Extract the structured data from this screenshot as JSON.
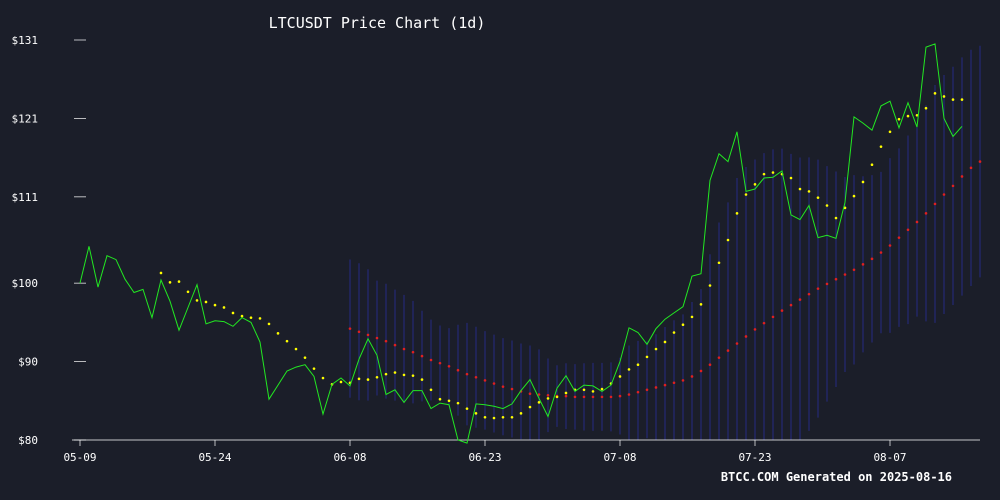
{
  "chart_data": {
    "type": "line",
    "title": "LTCUSDT Price Chart (1d)",
    "footer": "BTCC.COM Generated on 2025-08-16",
    "x_start": "2025-05-09",
    "x_tick_labels": [
      "05-09",
      "05-24",
      "06-08",
      "06-23",
      "07-08",
      "07-23",
      "08-07"
    ],
    "y_tick_labels": [
      "$131",
      "$121",
      "$111",
      "$100",
      "$90",
      "$80"
    ],
    "ylim": [
      80,
      131
    ],
    "colors": {
      "background": "#1b1e29",
      "price": "#22e822",
      "sma_short": "#ffff00",
      "sma_long": "#e02020",
      "band": "#2a2fa0",
      "axis": "#ffffff"
    },
    "series": [
      {
        "key": "price",
        "values": [
          100.0,
          104.7,
          99.5,
          103.5,
          103.0,
          100.5,
          98.8,
          99.2,
          95.6,
          100.4,
          97.7,
          94.0,
          96.9,
          99.8,
          94.8,
          95.2,
          95.1,
          94.5,
          95.6,
          95.0,
          92.5,
          85.2,
          87.0,
          88.8,
          89.3,
          89.6,
          88.1,
          83.3,
          87.1,
          87.9,
          86.9,
          90.3,
          92.9,
          90.8,
          85.8,
          86.4,
          84.8,
          86.3,
          86.3,
          84.0,
          84.7,
          84.5,
          80.0,
          79.6,
          84.6,
          84.5,
          84.3,
          84.0,
          84.6,
          86.3,
          87.7,
          85.3,
          83.0,
          86.6,
          88.2,
          86.2,
          87.0,
          86.9,
          86.2,
          87.0,
          90.0,
          94.3,
          93.7,
          92.2,
          94.2,
          95.4,
          96.2,
          97.0,
          100.9,
          101.2,
          113.1,
          116.5,
          115.5,
          119.3,
          111.7,
          112.0,
          113.4,
          113.5,
          114.3,
          108.7,
          108.1,
          109.9,
          105.8,
          106.1,
          105.7,
          110.3,
          121.2,
          120.4,
          119.5,
          122.6,
          123.2,
          119.8,
          123.0,
          119.9,
          130.1,
          130.5,
          121.0,
          118.7,
          120.0
        ]
      },
      {
        "key": "sma_short",
        "start_index": 9,
        "values": [
          101.3,
          100.1,
          100.2,
          98.9,
          97.8,
          97.6,
          97.2,
          96.9,
          96.2,
          95.8,
          95.6,
          95.5,
          94.8,
          93.6,
          92.6,
          91.6,
          90.5,
          89.1,
          87.9,
          87.1,
          87.4,
          87.3,
          87.8,
          87.7,
          88.0,
          88.4,
          88.6,
          88.3,
          88.2,
          87.7,
          86.4,
          85.2,
          85.0,
          84.7,
          84.0,
          83.4,
          82.9,
          82.8,
          82.9,
          82.9,
          83.4,
          84.2,
          84.8,
          85.3,
          85.5,
          86.0,
          86.4,
          86.4,
          86.2,
          86.5,
          87.2,
          88.1,
          89.0,
          89.6,
          90.6,
          91.6,
          92.5,
          93.7,
          94.7,
          95.7,
          97.3,
          99.7,
          102.6,
          105.5,
          108.9,
          111.3,
          112.6,
          113.9,
          114.1,
          113.9,
          113.4,
          112.0,
          111.7,
          110.9,
          109.9,
          108.3,
          109.6,
          111.1,
          112.9,
          115.1,
          117.4,
          119.3,
          120.9,
          121.3,
          121.4,
          122.3,
          124.2,
          123.8,
          123.4,
          123.4
        ]
      },
      {
        "key": "sma_long",
        "start_index": 30,
        "values": [
          94.2,
          93.8,
          93.4,
          93.0,
          92.6,
          92.1,
          91.6,
          91.2,
          90.7,
          90.2,
          89.8,
          89.4,
          88.9,
          88.4,
          88.0,
          87.6,
          87.2,
          86.8,
          86.5,
          86.2,
          85.9,
          85.8,
          85.7,
          85.6,
          85.6,
          85.5,
          85.5,
          85.5,
          85.5,
          85.5,
          85.6,
          85.8,
          86.1,
          86.4,
          86.7,
          87.0,
          87.3,
          87.6,
          88.1,
          88.8,
          89.6,
          90.5,
          91.4,
          92.3,
          93.2,
          94.1,
          94.9,
          95.7,
          96.5,
          97.2,
          97.9,
          98.6,
          99.3,
          99.9,
          100.5,
          101.1,
          101.7,
          102.4,
          103.1,
          103.9,
          104.8,
          105.8,
          106.8,
          107.8,
          108.9,
          110.1,
          111.3,
          112.4,
          113.6,
          114.7,
          115.5
        ]
      }
    ]
  }
}
